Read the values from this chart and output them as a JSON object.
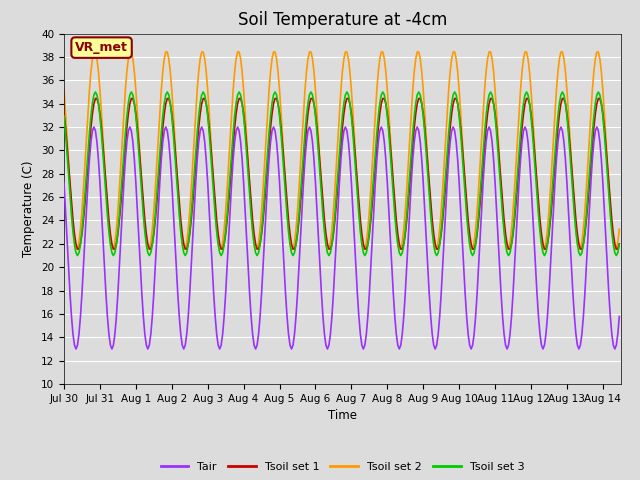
{
  "title": "Soil Temperature at -4cm",
  "xlabel": "Time",
  "ylabel": "Temperature (C)",
  "ylim": [
    10,
    40
  ],
  "background_color": "#DCDCDC",
  "plot_bg_color": "#DCDCDC",
  "grid_color": "#FFFFFF",
  "annotation_text": "VR_met",
  "annotation_color": "#8B0000",
  "annotation_bg": "#FFFF99",
  "line_colors": {
    "Tair": "#9B30FF",
    "Tsoil set 1": "#CC0000",
    "Tsoil set 2": "#FF9900",
    "Tsoil set 3": "#00CC00"
  },
  "line_widths": {
    "Tair": 1.2,
    "Tsoil set 1": 1.2,
    "Tsoil set 2": 1.2,
    "Tsoil set 3": 1.2
  },
  "xtick_labels": [
    "Jul 30",
    "Jul 31",
    "Aug 1",
    "Aug 2",
    "Aug 3",
    "Aug 4",
    "Aug 5",
    "Aug 6",
    "Aug 7",
    "Aug 8",
    "Aug 9",
    "Aug 10",
    "Aug 11",
    "Aug 12",
    "Aug 13",
    "Aug 14"
  ],
  "title_fontsize": 12,
  "legend_fontsize": 8,
  "tick_fontsize": 7.5
}
